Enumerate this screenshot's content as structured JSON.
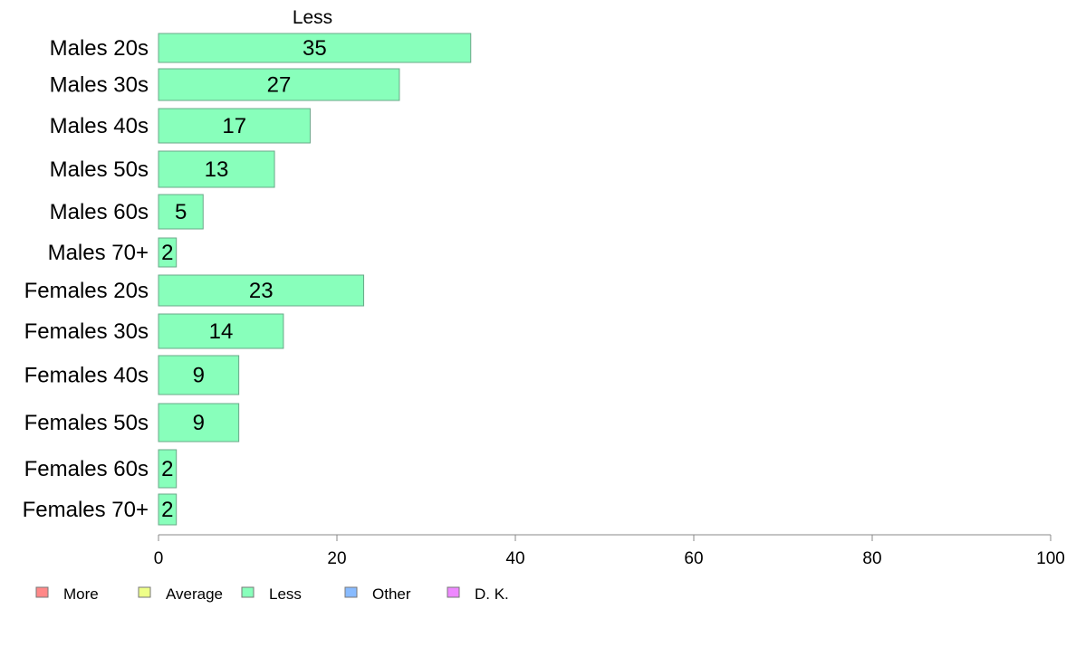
{
  "chart_data": {
    "type": "bar",
    "orientation": "horizontal",
    "title": "Less",
    "categories": [
      "Males 20s",
      "Males 30s",
      "Males 40s",
      "Males 50s",
      "Males 60s",
      "Males 70+",
      "Females 20s",
      "Females 30s",
      "Females 40s",
      "Females 50s",
      "Females 60s",
      "Females 70+"
    ],
    "series": [
      {
        "name": "Less",
        "color": "#88ffbb",
        "values": [
          35,
          27,
          17,
          13,
          5,
          2,
          23,
          14,
          9,
          9,
          2,
          2
        ]
      }
    ],
    "xlim": [
      0,
      100
    ],
    "xticks": [
      0,
      20,
      40,
      60,
      80,
      100
    ],
    "grid": false,
    "legend_placement": "bottom-left",
    "legend": [
      {
        "label": "More",
        "color": "#ff8888"
      },
      {
        "label": "Average",
        "color": "#eeff88"
      },
      {
        "label": "Less",
        "color": "#88ffbb"
      },
      {
        "label": "Other",
        "color": "#88bbff"
      },
      {
        "label": "D. K.",
        "color": "#ee88ff"
      }
    ]
  }
}
